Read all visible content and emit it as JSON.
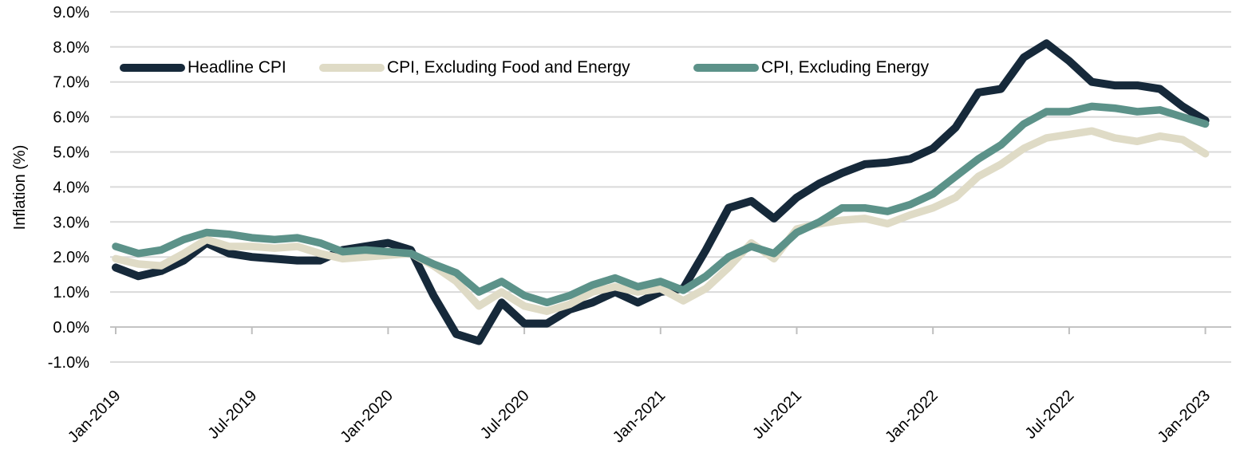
{
  "chart_data": {
    "type": "line",
    "title": "",
    "ylabel": "Inflation (%)",
    "xlabel": "",
    "ylim": [
      -1,
      9
    ],
    "y_tick_step": 1,
    "y_tick_labels": [
      "-1.0%",
      "0.0%",
      "1.0%",
      "2.0%",
      "3.0%",
      "4.0%",
      "5.0%",
      "6.0%",
      "7.0%",
      "8.0%",
      "9.0%"
    ],
    "x_axis_tick_labels": [
      "Jan-2019",
      "Jul-2019",
      "Jan-2020",
      "Jul-2020",
      "Jan-2021",
      "Jul-2021",
      "Jan-2022",
      "Jul-2022",
      "Jan-2023"
    ],
    "grid": "horizontal",
    "legend_position": "inside-top-left",
    "colors": {
      "gridline": "#D9D9D9",
      "zero_axis_line": "#C3C3C3",
      "tick": "#BFBFBF",
      "text": "#000000"
    },
    "x": [
      "Jan-2019",
      "Feb-2019",
      "Mar-2019",
      "Apr-2019",
      "May-2019",
      "Jun-2019",
      "Jul-2019",
      "Aug-2019",
      "Sep-2019",
      "Oct-2019",
      "Nov-2019",
      "Dec-2019",
      "Jan-2020",
      "Feb-2020",
      "Mar-2020",
      "Apr-2020",
      "May-2020",
      "Jun-2020",
      "Jul-2020",
      "Aug-2020",
      "Sep-2020",
      "Oct-2020",
      "Nov-2020",
      "Dec-2020",
      "Jan-2021",
      "Feb-2021",
      "Mar-2021",
      "Apr-2021",
      "May-2021",
      "Jun-2021",
      "Jul-2021",
      "Aug-2021",
      "Sep-2021",
      "Oct-2021",
      "Nov-2021",
      "Dec-2021",
      "Jan-2022",
      "Feb-2022",
      "Mar-2022",
      "Apr-2022",
      "May-2022",
      "Jun-2022",
      "Jul-2022",
      "Aug-2022",
      "Sep-2022",
      "Oct-2022",
      "Nov-2022",
      "Dec-2022",
      "Jan-2023"
    ],
    "series": [
      {
        "name": "Headline CPI",
        "color": "#16293A",
        "stroke_width": 10,
        "values": [
          1.7,
          1.45,
          1.6,
          1.9,
          2.4,
          2.1,
          2.0,
          1.95,
          1.9,
          1.9,
          2.2,
          2.3,
          2.4,
          2.2,
          0.9,
          -0.2,
          -0.4,
          0.7,
          0.1,
          0.1,
          0.5,
          0.7,
          1.0,
          0.7,
          1.0,
          1.1,
          2.2,
          3.4,
          3.6,
          3.1,
          3.7,
          4.1,
          4.4,
          4.65,
          4.7,
          4.8,
          5.1,
          5.7,
          6.7,
          6.8,
          7.7,
          8.1,
          7.6,
          7.0,
          6.9,
          6.9,
          6.8,
          6.3,
          5.9
        ]
      },
      {
        "name": "CPI, Excluding Food and Energy",
        "color": "#DFDBC6",
        "stroke_width": 9.5,
        "values": [
          1.95,
          1.8,
          1.75,
          2.1,
          2.5,
          2.3,
          2.3,
          2.25,
          2.3,
          2.1,
          1.95,
          2.0,
          2.05,
          2.1,
          1.75,
          1.3,
          0.6,
          1.0,
          0.6,
          0.45,
          0.65,
          1.0,
          1.15,
          1.0,
          1.1,
          0.75,
          1.1,
          1.7,
          2.4,
          1.95,
          2.8,
          2.95,
          3.05,
          3.1,
          2.95,
          3.2,
          3.4,
          3.7,
          4.3,
          4.65,
          5.1,
          5.4,
          5.5,
          5.6,
          5.4,
          5.3,
          5.45,
          5.35,
          4.95
        ]
      },
      {
        "name": "CPI, Excluding Energy",
        "color": "#5C9289",
        "stroke_width": 9.5,
        "values": [
          2.3,
          2.1,
          2.2,
          2.5,
          2.7,
          2.65,
          2.55,
          2.5,
          2.55,
          2.4,
          2.15,
          2.2,
          2.15,
          2.1,
          1.8,
          1.55,
          1.0,
          1.3,
          0.9,
          0.7,
          0.9,
          1.2,
          1.4,
          1.15,
          1.3,
          1.05,
          1.45,
          2.0,
          2.3,
          2.1,
          2.7,
          3.0,
          3.4,
          3.4,
          3.3,
          3.5,
          3.8,
          4.3,
          4.8,
          5.2,
          5.8,
          6.15,
          6.15,
          6.3,
          6.25,
          6.15,
          6.2,
          6.0,
          5.8
        ]
      }
    ],
    "legend_layout_x": [
      150,
      400,
      869
    ]
  }
}
